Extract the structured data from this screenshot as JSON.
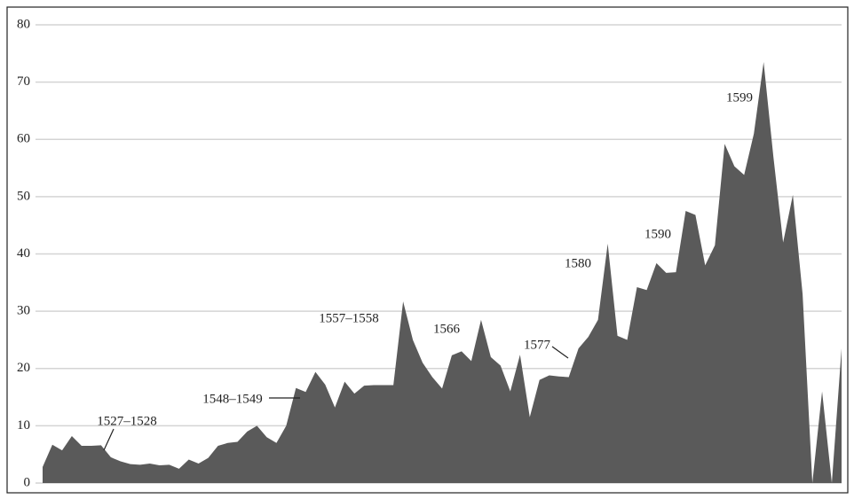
{
  "chart_data": {
    "type": "area",
    "color": "#5a5a5a",
    "grid": true,
    "ylim": [
      0,
      80
    ],
    "yticks": [
      0,
      10,
      20,
      30,
      40,
      50,
      60,
      70,
      80
    ],
    "values": [
      2.8,
      6.7,
      5.7,
      8.2,
      6.5,
      6.5,
      6.6,
      4.5,
      3.8,
      3.3,
      3.2,
      3.4,
      3.1,
      3.2,
      2.5,
      4.1,
      3.4,
      4.4,
      6.5,
      7.0,
      7.2,
      9.0,
      10.0,
      8.0,
      7.0,
      10.0,
      16.6,
      15.9,
      19.4,
      17.2,
      13.2,
      17.7,
      15.6,
      17.0,
      17.1,
      17.1,
      17.1,
      31.7,
      25,
      21,
      18.5,
      16.5,
      22.3,
      23,
      21.3,
      28.5,
      22,
      20.5,
      16,
      22.4,
      11.5,
      18,
      18.8,
      18.6,
      18.5,
      23.5,
      25.5,
      28.5,
      41.8,
      25.7,
      25,
      34.2,
      33.7,
      38.4,
      36.7,
      36.8,
      47.5,
      46.8,
      38,
      41.5,
      59.2,
      55.3,
      53.8,
      61,
      73.5,
      57,
      42,
      50.3,
      33,
      0,
      16,
      0,
      23.5
    ],
    "annotations": [
      "1527–1528",
      "1548–1549",
      "1557–1558",
      "1566",
      "1577",
      "1580",
      "1590",
      "1599"
    ]
  }
}
